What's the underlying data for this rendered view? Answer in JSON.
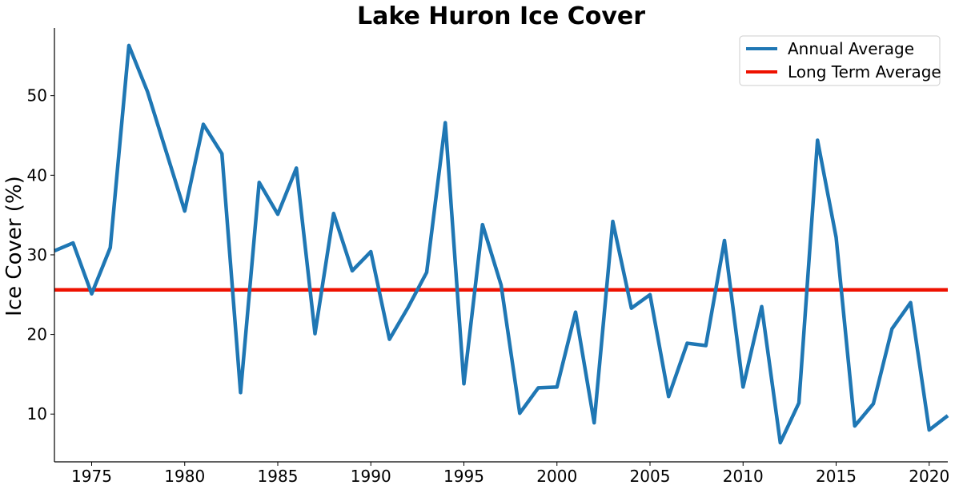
{
  "chart_data": {
    "type": "line",
    "title": "Lake Huron Ice Cover",
    "xlabel": "",
    "ylabel": "Ice Cover (%)",
    "xlim": [
      1973,
      2021
    ],
    "ylim": [
      4,
      58.5
    ],
    "x_ticks": [
      1975,
      1980,
      1985,
      1990,
      1995,
      2000,
      2005,
      2010,
      2015,
      2020
    ],
    "y_ticks": [
      10,
      20,
      30,
      40,
      50
    ],
    "grid": false,
    "legend_position": "top-right",
    "x": [
      1973,
      1974,
      1975,
      1976,
      1977,
      1978,
      1979,
      1980,
      1981,
      1982,
      1983,
      1984,
      1985,
      1986,
      1987,
      1988,
      1989,
      1990,
      1991,
      1992,
      1993,
      1994,
      1995,
      1996,
      1997,
      1998,
      1999,
      2000,
      2001,
      2002,
      2003,
      2004,
      2005,
      2006,
      2007,
      2008,
      2009,
      2010,
      2011,
      2012,
      2013,
      2014,
      2015,
      2016,
      2017,
      2018,
      2019,
      2020,
      2021
    ],
    "series": [
      {
        "name": "Annual Average",
        "color": "#1f77b4",
        "values": [
          30.5,
          31.5,
          25.1,
          30.9,
          56.3,
          50.5,
          43.0,
          35.5,
          46.4,
          42.7,
          12.7,
          39.1,
          35.1,
          40.9,
          20.1,
          35.2,
          28.0,
          30.4,
          19.4,
          23.4,
          27.8,
          46.6,
          13.8,
          33.8,
          26.2,
          10.1,
          13.3,
          13.4,
          22.8,
          8.9,
          34.2,
          23.3,
          25.0,
          12.2,
          18.9,
          18.6,
          31.8,
          13.4,
          23.5,
          6.4,
          11.4,
          44.4,
          32.2,
          8.5,
          11.3,
          20.7,
          24.0,
          8.0,
          9.8
        ]
      },
      {
        "name": "Long Term Average",
        "color": "#ee1100",
        "value": 25.6
      }
    ]
  }
}
